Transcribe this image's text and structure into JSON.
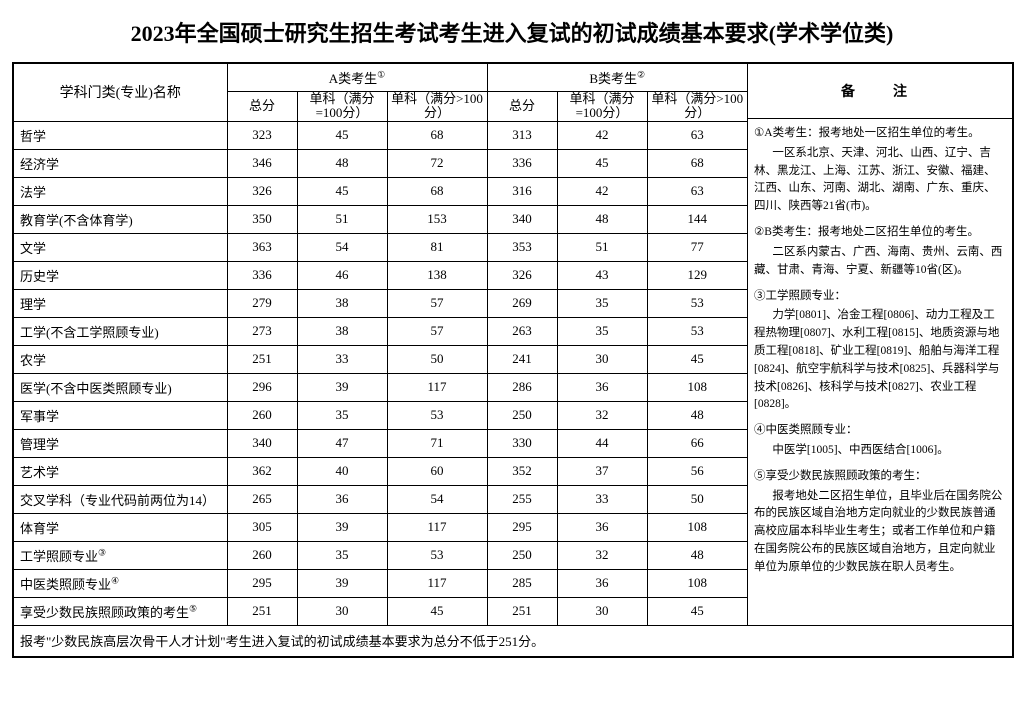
{
  "title": "2023年全国硕士研究生招生考试考生进入复试的初试成绩基本要求(学术学位类)",
  "headers": {
    "name": "学科门类(专业)名称",
    "groupA": "A类考生",
    "groupB": "B类考生",
    "supA": "①",
    "supB": "②",
    "total": "总分",
    "sub100": "单科（满分=100分）",
    "subOver100": "单科（满分>100分）",
    "notes": "备　注"
  },
  "rows": [
    {
      "name": "哲学",
      "a": [
        323,
        45,
        68
      ],
      "b": [
        313,
        42,
        63
      ]
    },
    {
      "name": "经济学",
      "a": [
        346,
        48,
        72
      ],
      "b": [
        336,
        45,
        68
      ]
    },
    {
      "name": "法学",
      "a": [
        326,
        45,
        68
      ],
      "b": [
        316,
        42,
        63
      ]
    },
    {
      "name": "教育学(不含体育学)",
      "a": [
        350,
        51,
        153
      ],
      "b": [
        340,
        48,
        144
      ]
    },
    {
      "name": "文学",
      "a": [
        363,
        54,
        81
      ],
      "b": [
        353,
        51,
        77
      ]
    },
    {
      "name": "历史学",
      "a": [
        336,
        46,
        138
      ],
      "b": [
        326,
        43,
        129
      ]
    },
    {
      "name": "理学",
      "a": [
        279,
        38,
        57
      ],
      "b": [
        269,
        35,
        53
      ]
    },
    {
      "name": "工学(不含工学照顾专业)",
      "a": [
        273,
        38,
        57
      ],
      "b": [
        263,
        35,
        53
      ]
    },
    {
      "name": "农学",
      "a": [
        251,
        33,
        50
      ],
      "b": [
        241,
        30,
        45
      ]
    },
    {
      "name": "医学(不含中医类照顾专业)",
      "a": [
        296,
        39,
        117
      ],
      "b": [
        286,
        36,
        108
      ]
    },
    {
      "name": "军事学",
      "a": [
        260,
        35,
        53
      ],
      "b": [
        250,
        32,
        48
      ]
    },
    {
      "name": "管理学",
      "a": [
        340,
        47,
        71
      ],
      "b": [
        330,
        44,
        66
      ]
    },
    {
      "name": "艺术学",
      "a": [
        362,
        40,
        60
      ],
      "b": [
        352,
        37,
        56
      ]
    },
    {
      "name": "交叉学科（专业代码前两位为14）",
      "a": [
        265,
        36,
        54
      ],
      "b": [
        255,
        33,
        50
      ]
    },
    {
      "name": "体育学",
      "a": [
        305,
        39,
        117
      ],
      "b": [
        295,
        36,
        108
      ]
    },
    {
      "name": "工学照顾专业",
      "sup": "③",
      "a": [
        260,
        35,
        53
      ],
      "b": [
        250,
        32,
        48
      ]
    },
    {
      "name": "中医类照顾专业",
      "sup": "④",
      "a": [
        295,
        39,
        117
      ],
      "b": [
        285,
        36,
        108
      ]
    },
    {
      "name": "享受少数民族照顾政策的考生",
      "sup": "⑤",
      "a": [
        251,
        30,
        45
      ],
      "b": [
        251,
        30,
        45
      ]
    }
  ],
  "footer": "报考\"少数民族高层次骨干人才计划\"考生进入复试的初试成绩基本要求为总分不低于251分。",
  "notes": {
    "l1": "①A类考生：报考地处一区招生单位的考生。",
    "l2": "一区系北京、天津、河北、山西、辽宁、吉林、黑龙江、上海、江苏、浙江、安徽、福建、江西、山东、河南、湖北、湖南、广东、重庆、四川、陕西等21省(市)。",
    "l3": "②B类考生：报考地处二区招生单位的考生。",
    "l4": "二区系内蒙古、广西、海南、贵州、云南、西藏、甘肃、青海、宁夏、新疆等10省(区)。",
    "l5": "③工学照顾专业：",
    "l6": "力学[0801]、冶金工程[0806]、动力工程及工程热物理[0807]、水利工程[0815]、地质资源与地质工程[0818]、矿业工程[0819]、船舶与海洋工程[0824]、航空宇航科学与技术[0825]、兵器科学与技术[0826]、核科学与技术[0827]、农业工程[0828]。",
    "l7": "④中医类照顾专业：",
    "l8": "中医学[1005]、中西医结合[1006]。",
    "l9": "⑤享受少数民族照顾政策的考生：",
    "l10": "报考地处二区招生单位，且毕业后在国务院公布的民族区域自治地方定向就业的少数民族普通高校应届本科毕业生考生；或者工作单位和户籍在国务院公布的民族区域自治地方，且定向就业单位为原单位的少数民族在职人员考生。"
  }
}
